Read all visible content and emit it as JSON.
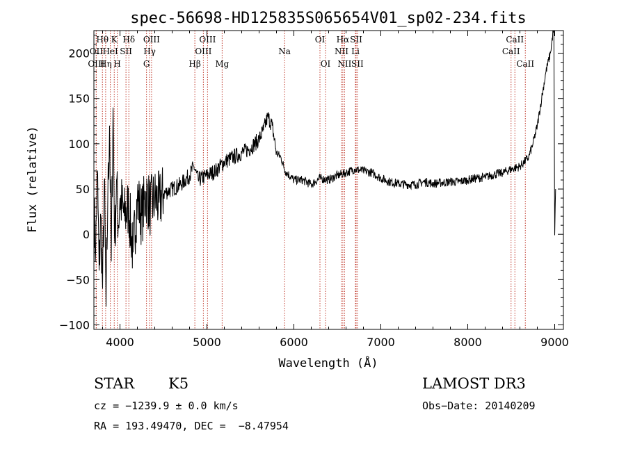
{
  "colors": {
    "spectrum": "#000000",
    "line_marker": "#c0392b",
    "axes": "#000000"
  },
  "chart_data": {
    "type": "line",
    "title": "spec-56698-HD125835S065654V01_sp02-234.fits",
    "xlabel": "Wavelength (Å)",
    "ylabel": "Flux (relative)",
    "xlim": [
      3700,
      9100
    ],
    "ylim": [
      -105,
      225
    ],
    "x_ticks": [
      4000,
      5000,
      6000,
      7000,
      8000,
      9000
    ],
    "y_ticks": [
      -100,
      -50,
      0,
      50,
      100,
      150,
      200
    ],
    "grid": false,
    "series": [
      {
        "x": [
          3700,
          3720,
          3740,
          3760,
          3780,
          3800,
          3820,
          3840,
          3860,
          3880,
          3900,
          3920,
          3940,
          3960,
          3980,
          4000,
          4050,
          4100,
          4150,
          4200,
          4250,
          4300,
          4350,
          4400,
          4450,
          4500,
          4600,
          4700,
          4800,
          4850,
          4900,
          5000,
          5100,
          5200,
          5300,
          5400,
          5500,
          5600,
          5650,
          5700,
          5750,
          5800,
          5850,
          5900,
          6000,
          6100,
          6200,
          6300,
          6400,
          6500,
          6600,
          6700,
          6800,
          6900,
          7000,
          7100,
          7200,
          7300,
          7400,
          7500,
          7600,
          7700,
          7800,
          7900,
          8000,
          8100,
          8200,
          8300,
          8400,
          8500,
          8600,
          8650,
          8700,
          8750,
          8800,
          8850,
          8900,
          8950,
          8990,
          9000,
          9010
        ],
        "y": [
          30,
          -20,
          70,
          -40,
          20,
          -60,
          60,
          -80,
          40,
          120,
          -30,
          140,
          -10,
          60,
          10,
          40,
          20,
          30,
          -20,
          40,
          20,
          45,
          30,
          40,
          35,
          45,
          50,
          55,
          65,
          75,
          60,
          65,
          70,
          80,
          85,
          90,
          95,
          105,
          115,
          130,
          120,
          90,
          85,
          70,
          60,
          60,
          55,
          62,
          60,
          65,
          68,
          72,
          70,
          68,
          62,
          58,
          56,
          55,
          55,
          58,
          56,
          57,
          58,
          58,
          60,
          62,
          63,
          66,
          68,
          72,
          75,
          80,
          85,
          100,
          120,
          150,
          180,
          200,
          230,
          -1,
          50
        ]
      }
    ],
    "spectral_lines": [
      {
        "label": "Hθ",
        "wavelength": 3798,
        "row": 1
      },
      {
        "label": "OII",
        "wavelength": 3727,
        "row": 2
      },
      {
        "label": "OIII",
        "wavelength": 3727,
        "row": 3
      },
      {
        "label": "Hη",
        "wavelength": 3835,
        "row": 3
      },
      {
        "label": "K",
        "wavelength": 3934,
        "row": 1
      },
      {
        "label": "HeI",
        "wavelength": 3889,
        "row": 2
      },
      {
        "label": "H",
        "wavelength": 3969,
        "row": 3
      },
      {
        "label": "SII",
        "wavelength": 4069,
        "row": 2
      },
      {
        "label": "Hδ",
        "wavelength": 4102,
        "row": 1
      },
      {
        "label": "OIII",
        "wavelength": 4363,
        "row": 1
      },
      {
        "label": "Hγ",
        "wavelength": 4341,
        "row": 2
      },
      {
        "label": "G",
        "wavelength": 4305,
        "row": 3
      },
      {
        "label": "Hβ",
        "wavelength": 4861,
        "row": 3
      },
      {
        "label": "OIII",
        "wavelength": 5007,
        "row": 1
      },
      {
        "label": "OIII",
        "wavelength": 4959,
        "row": 2
      },
      {
        "label": "Mg",
        "wavelength": 5175,
        "row": 3
      },
      {
        "label": "Na",
        "wavelength": 5893,
        "row": 2
      },
      {
        "label": "OI",
        "wavelength": 6300,
        "row": 1
      },
      {
        "label": "OI",
        "wavelength": 6364,
        "row": 3
      },
      {
        "label": "Hα",
        "wavelength": 6563,
        "row": 1
      },
      {
        "label": "SII",
        "wavelength": 6716,
        "row": 1
      },
      {
        "label": "NII",
        "wavelength": 6548,
        "row": 2
      },
      {
        "label": "Li",
        "wavelength": 6708,
        "row": 2
      },
      {
        "label": "NII",
        "wavelength": 6583,
        "row": 3
      },
      {
        "label": "SII",
        "wavelength": 6731,
        "row": 3
      },
      {
        "label": "CaII",
        "wavelength": 8542,
        "row": 1
      },
      {
        "label": "CaII",
        "wavelength": 8498,
        "row": 2
      },
      {
        "label": "CaII",
        "wavelength": 8662,
        "row": 3
      }
    ]
  },
  "info": {
    "class": "STAR",
    "subclass": "K5",
    "survey": "LAMOST DR3",
    "cz": "cz = −1239.9 ± 0.0 km/s",
    "obs_date": "Obs−Date: 20140209",
    "coords": "RA = 193.49470, DEC =  −8.47954"
  }
}
